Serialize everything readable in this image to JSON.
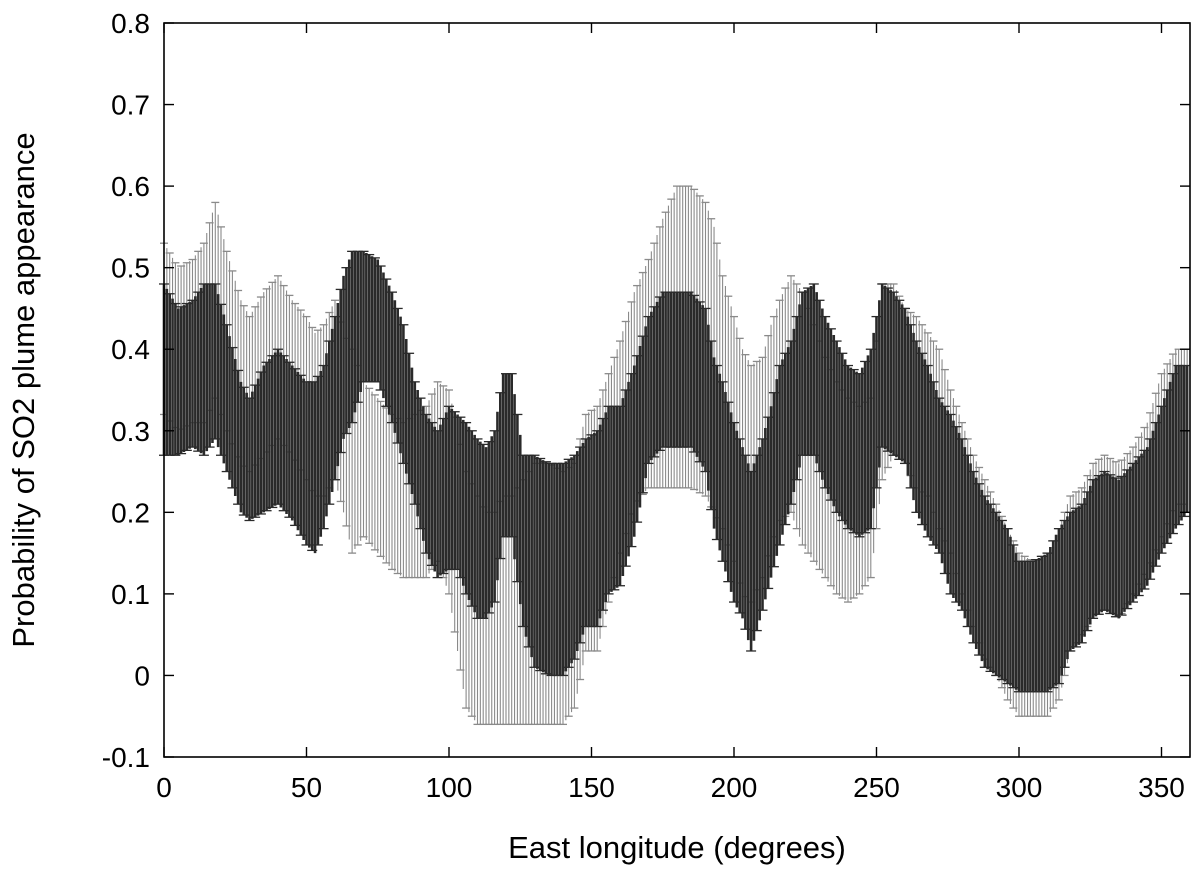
{
  "chart_data": {
    "type": "scatter",
    "title": "",
    "xlabel": "East longitude (degrees)",
    "ylabel": "Probability of SO2 plume appearance",
    "xlim": [
      0,
      360
    ],
    "ylim": [
      -0.1,
      0.8
    ],
    "x_ticks": [
      0,
      50,
      100,
      150,
      200,
      250,
      300,
      350
    ],
    "y_ticks": [
      -0.1,
      0,
      0.1,
      0.2,
      0.3,
      0.4,
      0.5,
      0.6,
      0.7,
      0.8
    ],
    "x_tick_labels": [
      "0",
      "50",
      "100",
      "150",
      "200",
      "250",
      "300",
      "350"
    ],
    "y_tick_labels": [
      "-0.1",
      "0",
      "0.1",
      "0.2",
      "0.3",
      "0.4",
      "0.5",
      "0.6",
      "0.7",
      "0.8"
    ],
    "grid": false,
    "legend": "none",
    "colors": {
      "dark_series": "#2a2a2a",
      "light_series": "#8a8a8a",
      "frame": "#000000"
    },
    "series": [
      {
        "style": "dark",
        "point_spacing_deg": 1,
        "anchors": [
          [
            0,
            0.27,
            0.48
          ],
          [
            5,
            0.27,
            0.45
          ],
          [
            10,
            0.28,
            0.46
          ],
          [
            14,
            0.27,
            0.48
          ],
          [
            18,
            0.29,
            0.48
          ],
          [
            22,
            0.25,
            0.43
          ],
          [
            27,
            0.2,
            0.36
          ],
          [
            30,
            0.19,
            0.34
          ],
          [
            35,
            0.2,
            0.38
          ],
          [
            40,
            0.21,
            0.4
          ],
          [
            45,
            0.19,
            0.38
          ],
          [
            50,
            0.16,
            0.36
          ],
          [
            53,
            0.15,
            0.36
          ],
          [
            56,
            0.18,
            0.38
          ],
          [
            60,
            0.24,
            0.44
          ],
          [
            63,
            0.29,
            0.49
          ],
          [
            66,
            0.31,
            0.52
          ],
          [
            70,
            0.36,
            0.52
          ],
          [
            75,
            0.36,
            0.51
          ],
          [
            80,
            0.31,
            0.47
          ],
          [
            84,
            0.26,
            0.43
          ],
          [
            88,
            0.21,
            0.36
          ],
          [
            92,
            0.15,
            0.32
          ],
          [
            96,
            0.12,
            0.3
          ],
          [
            100,
            0.13,
            0.33
          ],
          [
            103,
            0.13,
            0.32
          ],
          [
            106,
            0.1,
            0.31
          ],
          [
            110,
            0.07,
            0.29
          ],
          [
            113,
            0.07,
            0.28
          ],
          [
            116,
            0.09,
            0.3
          ],
          [
            119,
            0.17,
            0.37
          ],
          [
            122,
            0.17,
            0.37
          ],
          [
            126,
            0.06,
            0.27
          ],
          [
            130,
            0.01,
            0.27
          ],
          [
            135,
            0.0,
            0.26
          ],
          [
            140,
            0.0,
            0.26
          ],
          [
            144,
            0.02,
            0.27
          ],
          [
            148,
            0.06,
            0.29
          ],
          [
            152,
            0.06,
            0.3
          ],
          [
            156,
            0.1,
            0.33
          ],
          [
            160,
            0.11,
            0.33
          ],
          [
            165,
            0.17,
            0.38
          ],
          [
            170,
            0.26,
            0.44
          ],
          [
            175,
            0.28,
            0.47
          ],
          [
            180,
            0.28,
            0.47
          ],
          [
            185,
            0.28,
            0.47
          ],
          [
            190,
            0.25,
            0.45
          ],
          [
            193,
            0.18,
            0.39
          ],
          [
            196,
            0.14,
            0.36
          ],
          [
            200,
            0.09,
            0.31
          ],
          [
            203,
            0.07,
            0.28
          ],
          [
            206,
            0.03,
            0.25
          ],
          [
            210,
            0.08,
            0.29
          ],
          [
            213,
            0.12,
            0.33
          ],
          [
            216,
            0.16,
            0.38
          ],
          [
            220,
            0.21,
            0.41
          ],
          [
            224,
            0.27,
            0.47
          ],
          [
            228,
            0.27,
            0.48
          ],
          [
            232,
            0.23,
            0.44
          ],
          [
            236,
            0.2,
            0.41
          ],
          [
            240,
            0.18,
            0.38
          ],
          [
            244,
            0.17,
            0.37
          ],
          [
            248,
            0.18,
            0.4
          ],
          [
            252,
            0.28,
            0.48
          ],
          [
            256,
            0.27,
            0.47
          ],
          [
            260,
            0.26,
            0.45
          ],
          [
            264,
            0.2,
            0.41
          ],
          [
            268,
            0.17,
            0.38
          ],
          [
            272,
            0.15,
            0.34
          ],
          [
            276,
            0.1,
            0.32
          ],
          [
            280,
            0.08,
            0.29
          ],
          [
            284,
            0.04,
            0.25
          ],
          [
            288,
            0.01,
            0.22
          ],
          [
            292,
            0.0,
            0.2
          ],
          [
            296,
            -0.01,
            0.18
          ],
          [
            300,
            -0.02,
            0.14
          ],
          [
            305,
            -0.02,
            0.14
          ],
          [
            310,
            -0.02,
            0.15
          ],
          [
            314,
            -0.01,
            0.18
          ],
          [
            318,
            0.03,
            0.2
          ],
          [
            322,
            0.04,
            0.21
          ],
          [
            326,
            0.07,
            0.24
          ],
          [
            330,
            0.08,
            0.25
          ],
          [
            335,
            0.07,
            0.24
          ],
          [
            340,
            0.09,
            0.26
          ],
          [
            345,
            0.11,
            0.28
          ],
          [
            350,
            0.15,
            0.33
          ],
          [
            355,
            0.18,
            0.38
          ],
          [
            359,
            0.2,
            0.38
          ]
        ]
      },
      {
        "style": "light",
        "point_spacing_deg": 1,
        "anchors": [
          [
            0,
            0.32,
            0.53
          ],
          [
            5,
            0.3,
            0.5
          ],
          [
            10,
            0.31,
            0.51
          ],
          [
            14,
            0.31,
            0.53
          ],
          [
            18,
            0.34,
            0.58
          ],
          [
            22,
            0.3,
            0.52
          ],
          [
            27,
            0.26,
            0.46
          ],
          [
            30,
            0.25,
            0.44
          ],
          [
            35,
            0.27,
            0.47
          ],
          [
            40,
            0.29,
            0.49
          ],
          [
            45,
            0.27,
            0.46
          ],
          [
            50,
            0.24,
            0.44
          ],
          [
            53,
            0.22,
            0.42
          ],
          [
            56,
            0.22,
            0.43
          ],
          [
            60,
            0.24,
            0.46
          ],
          [
            63,
            0.2,
            0.42
          ],
          [
            66,
            0.15,
            0.4
          ],
          [
            70,
            0.17,
            0.36
          ],
          [
            75,
            0.15,
            0.34
          ],
          [
            80,
            0.13,
            0.32
          ],
          [
            84,
            0.12,
            0.31
          ],
          [
            88,
            0.12,
            0.32
          ],
          [
            92,
            0.12,
            0.33
          ],
          [
            96,
            0.14,
            0.36
          ],
          [
            100,
            0.1,
            0.35
          ],
          [
            103,
            0.03,
            0.3
          ],
          [
            106,
            -0.04,
            0.25
          ],
          [
            110,
            -0.06,
            0.22
          ],
          [
            113,
            -0.06,
            0.2
          ],
          [
            116,
            -0.06,
            0.2
          ],
          [
            119,
            -0.06,
            0.22
          ],
          [
            122,
            -0.06,
            0.22
          ],
          [
            126,
            -0.06,
            0.24
          ],
          [
            130,
            -0.06,
            0.26
          ],
          [
            135,
            -0.06,
            0.26
          ],
          [
            140,
            -0.06,
            0.25
          ],
          [
            144,
            -0.04,
            0.26
          ],
          [
            148,
            0.03,
            0.32
          ],
          [
            152,
            0.03,
            0.33
          ],
          [
            156,
            0.09,
            0.37
          ],
          [
            160,
            0.15,
            0.41
          ],
          [
            165,
            0.21,
            0.47
          ],
          [
            170,
            0.23,
            0.51
          ],
          [
            175,
            0.23,
            0.56
          ],
          [
            180,
            0.23,
            0.6
          ],
          [
            185,
            0.23,
            0.6
          ],
          [
            190,
            0.22,
            0.58
          ],
          [
            193,
            0.2,
            0.55
          ],
          [
            196,
            0.18,
            0.49
          ],
          [
            200,
            0.14,
            0.44
          ],
          [
            203,
            0.1,
            0.4
          ],
          [
            206,
            0.09,
            0.38
          ],
          [
            210,
            0.12,
            0.39
          ],
          [
            213,
            0.16,
            0.43
          ],
          [
            216,
            0.19,
            0.46
          ],
          [
            220,
            0.2,
            0.49
          ],
          [
            224,
            0.16,
            0.47
          ],
          [
            228,
            0.14,
            0.43
          ],
          [
            232,
            0.12,
            0.39
          ],
          [
            236,
            0.1,
            0.36
          ],
          [
            240,
            0.09,
            0.34
          ],
          [
            244,
            0.1,
            0.33
          ],
          [
            248,
            0.12,
            0.34
          ],
          [
            252,
            0.24,
            0.48
          ],
          [
            256,
            0.27,
            0.48
          ],
          [
            260,
            0.26,
            0.45
          ],
          [
            264,
            0.23,
            0.44
          ],
          [
            268,
            0.22,
            0.42
          ],
          [
            272,
            0.18,
            0.4
          ],
          [
            276,
            0.15,
            0.35
          ],
          [
            280,
            0.1,
            0.31
          ],
          [
            284,
            0.06,
            0.27
          ],
          [
            288,
            0.02,
            0.24
          ],
          [
            292,
            0.0,
            0.21
          ],
          [
            296,
            -0.03,
            0.18
          ],
          [
            300,
            -0.05,
            0.15
          ],
          [
            305,
            -0.05,
            0.14
          ],
          [
            310,
            -0.05,
            0.15
          ],
          [
            314,
            -0.03,
            0.18
          ],
          [
            318,
            0.03,
            0.22
          ],
          [
            322,
            0.05,
            0.23
          ],
          [
            326,
            0.07,
            0.26
          ],
          [
            330,
            0.08,
            0.27
          ],
          [
            335,
            0.07,
            0.26
          ],
          [
            340,
            0.1,
            0.28
          ],
          [
            345,
            0.13,
            0.31
          ],
          [
            350,
            0.17,
            0.37
          ],
          [
            355,
            0.21,
            0.4
          ],
          [
            359,
            0.21,
            0.4
          ]
        ]
      }
    ]
  }
}
